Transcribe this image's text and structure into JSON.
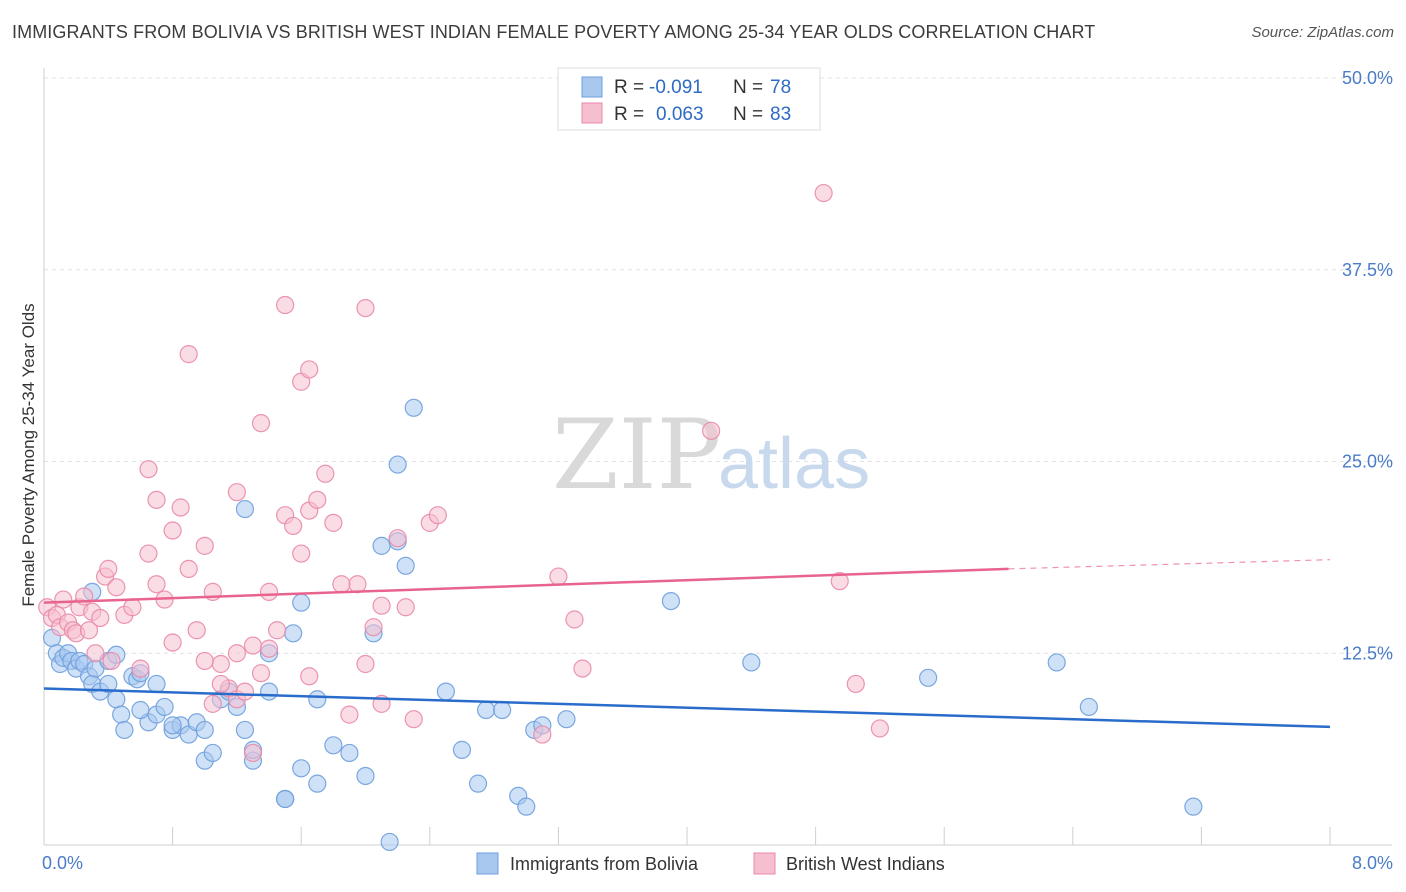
{
  "title": "IMMIGRANTS FROM BOLIVIA VS BRITISH WEST INDIAN FEMALE POVERTY AMONG 25-34 YEAR OLDS CORRELATION CHART",
  "source": "Source: ZipAtlas.com",
  "watermark": {
    "zip": "ZIP",
    "atlas": "atlas"
  },
  "legend": {
    "r_label": "R =",
    "n_label": "N =",
    "rows": [
      {
        "r": "-0.091",
        "n": "78"
      },
      {
        "r": "0.063",
        "n": "83"
      }
    ]
  },
  "colors": {
    "blue_fill": "#a8c8f0",
    "blue_stroke": "#6f9fdc",
    "blue_line": "#2a6ccc",
    "pink_fill": "#f6bfd0",
    "pink_stroke": "#e98aa8",
    "pink_line": "#e8648e",
    "tick_label": "#4a7cc7",
    "grid": "#e2e2e2"
  },
  "chart_data": {
    "type": "scatter",
    "title": "IMMIGRANTS FROM BOLIVIA VS BRITISH WEST INDIAN FEMALE POVERTY AMONG 25-34 YEAR OLDS CORRELATION CHART",
    "xlabel": "",
    "ylabel": "Female Poverty Among 25-34 Year Olds",
    "xlim": [
      0,
      8
    ],
    "ylim": [
      0,
      50
    ],
    "x_tick_labels": [
      "0.0%",
      "8.0%"
    ],
    "y_ticks": [
      12.5,
      25.0,
      37.5,
      50.0
    ],
    "y_tick_labels": [
      "12.5%",
      "25.0%",
      "37.5%",
      "50.0%"
    ],
    "grid": true,
    "legend_position": "top-center",
    "series": [
      {
        "name": "Immigrants from Bolivia",
        "r": -0.091,
        "n": 78,
        "trend": {
          "x": [
            0,
            8
          ],
          "y": [
            10.2,
            7.7
          ],
          "dashed_from": null
        },
        "points": [
          [
            0.05,
            13.5
          ],
          [
            0.08,
            12.5
          ],
          [
            0.1,
            11.8
          ],
          [
            0.12,
            12.2
          ],
          [
            0.15,
            12.5
          ],
          [
            0.17,
            12.0
          ],
          [
            0.2,
            11.5
          ],
          [
            0.22,
            12.0
          ],
          [
            0.25,
            11.8
          ],
          [
            0.28,
            11.0
          ],
          [
            0.3,
            10.5
          ],
          [
            0.32,
            11.5
          ],
          [
            0.35,
            10.0
          ],
          [
            0.4,
            10.5
          ],
          [
            0.45,
            9.5
          ],
          [
            0.48,
            8.5
          ],
          [
            0.5,
            7.5
          ],
          [
            0.55,
            11.0
          ],
          [
            0.58,
            10.8
          ],
          [
            0.6,
            11.2
          ],
          [
            0.65,
            8.0
          ],
          [
            0.7,
            8.5
          ],
          [
            0.75,
            9.0
          ],
          [
            0.8,
            7.5
          ],
          [
            0.85,
            7.8
          ],
          [
            0.9,
            7.2
          ],
          [
            0.95,
            8.0
          ],
          [
            1.0,
            5.5
          ],
          [
            1.05,
            6.0
          ],
          [
            1.1,
            9.5
          ],
          [
            1.15,
            10.0
          ],
          [
            1.2,
            9.0
          ],
          [
            1.25,
            7.5
          ],
          [
            1.3,
            5.5
          ],
          [
            1.4,
            10.0
          ],
          [
            1.5,
            3.0
          ],
          [
            1.6,
            5.0
          ],
          [
            1.7,
            4.0
          ],
          [
            1.8,
            6.5
          ],
          [
            1.9,
            6.0
          ],
          [
            2.0,
            4.5
          ],
          [
            2.05,
            13.8
          ],
          [
            2.1,
            19.5
          ],
          [
            2.15,
            0.2
          ],
          [
            2.2,
            19.8
          ],
          [
            2.25,
            18.2
          ],
          [
            2.3,
            28.5
          ],
          [
            2.2,
            24.8
          ],
          [
            2.5,
            10.0
          ],
          [
            2.6,
            6.2
          ],
          [
            2.7,
            4.0
          ],
          [
            2.75,
            8.8
          ],
          [
            2.85,
            8.8
          ],
          [
            2.95,
            3.2
          ],
          [
            3.0,
            2.5
          ],
          [
            0.3,
            16.5
          ],
          [
            0.4,
            12.0
          ],
          [
            0.6,
            8.8
          ],
          [
            0.7,
            10.5
          ],
          [
            0.8,
            7.8
          ],
          [
            1.0,
            7.5
          ],
          [
            1.3,
            6.2
          ],
          [
            1.4,
            12.5
          ],
          [
            1.55,
            13.8
          ],
          [
            1.6,
            15.8
          ],
          [
            1.7,
            9.5
          ],
          [
            1.25,
            21.9
          ],
          [
            1.5,
            3.0
          ],
          [
            3.05,
            7.5
          ],
          [
            3.1,
            7.8
          ],
          [
            3.25,
            8.2
          ],
          [
            3.9,
            15.9
          ],
          [
            4.4,
            11.9
          ],
          [
            5.5,
            10.9
          ],
          [
            6.3,
            11.9
          ],
          [
            6.5,
            9.0
          ],
          [
            7.15,
            2.5
          ],
          [
            0.45,
            12.4
          ]
        ]
      },
      {
        "name": "British West Indians",
        "r": 0.063,
        "n": 83,
        "trend": {
          "x": [
            0,
            6
          ],
          "y": [
            15.8,
            18.0
          ],
          "dashed_from": 6,
          "dashed_to": {
            "x": 8,
            "y": 18.6
          }
        },
        "points": [
          [
            0.02,
            15.5
          ],
          [
            0.05,
            14.8
          ],
          [
            0.08,
            15.0
          ],
          [
            0.1,
            14.2
          ],
          [
            0.12,
            16.0
          ],
          [
            0.15,
            14.5
          ],
          [
            0.18,
            14.0
          ],
          [
            0.2,
            13.8
          ],
          [
            0.22,
            15.5
          ],
          [
            0.25,
            16.2
          ],
          [
            0.28,
            14.0
          ],
          [
            0.3,
            15.2
          ],
          [
            0.32,
            12.5
          ],
          [
            0.35,
            14.8
          ],
          [
            0.38,
            17.5
          ],
          [
            0.4,
            18.0
          ],
          [
            0.42,
            12.0
          ],
          [
            0.45,
            16.8
          ],
          [
            0.5,
            15.0
          ],
          [
            0.55,
            15.5
          ],
          [
            0.6,
            11.5
          ],
          [
            0.65,
            19.0
          ],
          [
            0.7,
            17.0
          ],
          [
            0.75,
            16.0
          ],
          [
            0.8,
            20.5
          ],
          [
            0.85,
            22.0
          ],
          [
            0.9,
            18.0
          ],
          [
            0.95,
            14.0
          ],
          [
            1.0,
            19.5
          ],
          [
            1.05,
            16.5
          ],
          [
            1.1,
            11.8
          ],
          [
            1.15,
            10.2
          ],
          [
            1.2,
            9.5
          ],
          [
            1.25,
            10.0
          ],
          [
            1.3,
            13.0
          ],
          [
            1.35,
            11.2
          ],
          [
            1.4,
            16.5
          ],
          [
            1.45,
            14.0
          ],
          [
            1.5,
            21.5
          ],
          [
            1.55,
            20.8
          ],
          [
            1.6,
            19.0
          ],
          [
            1.65,
            21.8
          ],
          [
            1.7,
            22.5
          ],
          [
            1.75,
            24.2
          ],
          [
            1.8,
            21.0
          ],
          [
            1.9,
            8.5
          ],
          [
            1.95,
            17.0
          ],
          [
            2.0,
            11.8
          ],
          [
            2.05,
            14.2
          ],
          [
            2.1,
            9.2
          ],
          [
            2.2,
            20.0
          ],
          [
            2.25,
            15.5
          ],
          [
            2.3,
            8.2
          ],
          [
            2.4,
            21.0
          ],
          [
            2.45,
            21.5
          ],
          [
            0.9,
            32.0
          ],
          [
            1.2,
            23.0
          ],
          [
            1.35,
            27.5
          ],
          [
            1.5,
            35.2
          ],
          [
            1.6,
            30.2
          ],
          [
            1.65,
            31.0
          ],
          [
            2.0,
            35.0
          ],
          [
            0.65,
            24.5
          ],
          [
            0.7,
            22.5
          ],
          [
            0.8,
            13.2
          ],
          [
            1.0,
            12.0
          ],
          [
            1.05,
            9.2
          ],
          [
            1.1,
            10.5
          ],
          [
            1.2,
            12.5
          ],
          [
            1.3,
            6.0
          ],
          [
            1.4,
            12.8
          ],
          [
            1.65,
            11.0
          ],
          [
            1.85,
            17.0
          ],
          [
            2.1,
            15.6
          ],
          [
            3.1,
            7.2
          ],
          [
            3.2,
            17.5
          ],
          [
            3.3,
            14.7
          ],
          [
            3.35,
            11.5
          ],
          [
            4.15,
            27.0
          ],
          [
            4.85,
            42.5
          ],
          [
            4.95,
            17.2
          ],
          [
            5.05,
            10.5
          ],
          [
            5.2,
            7.6
          ]
        ]
      }
    ]
  },
  "bottom_legend": [
    "Immigrants from Bolivia",
    "British West Indians"
  ]
}
